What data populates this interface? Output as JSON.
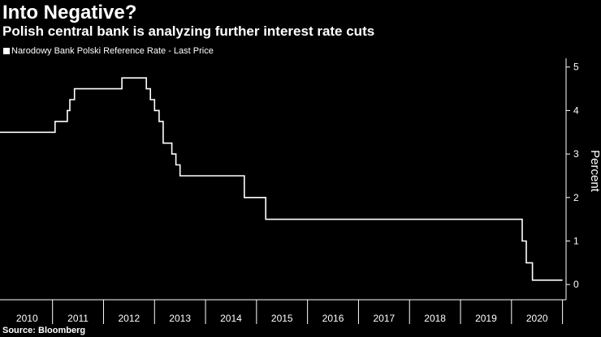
{
  "header": {
    "title": "Into Negative?",
    "subtitle": "Polish central bank is analyzing further interest rate cuts"
  },
  "legend": {
    "label": "Narodowy Bank Polski Reference Rate - Last Price",
    "color": "#ffffff"
  },
  "footer": {
    "source": "Source: Bloomberg"
  },
  "chart_data": {
    "type": "line",
    "title": "Into Negative?",
    "subtitle": "Polish central bank is analyzing further interest rate cuts",
    "ylabel": "Percent",
    "xlabel": "",
    "xlim": [
      2009.97,
      2021.07
    ],
    "ylim": [
      -0.35,
      5.2
    ],
    "yticks": [
      0,
      1,
      2,
      3,
      4,
      5
    ],
    "xticks": [
      "2010",
      "2011",
      "2012",
      "2013",
      "2014",
      "2015",
      "2016",
      "2017",
      "2018",
      "2019",
      "2020"
    ],
    "grid": false,
    "legend_position": "top-left",
    "background": "#000000",
    "line_color": "#ffffff",
    "series": [
      {
        "name": "Narodowy Bank Polski Reference Rate - Last Price",
        "step": true,
        "points": [
          [
            2009.97,
            3.5
          ],
          [
            2011.05,
            3.75
          ],
          [
            2011.29,
            4.0
          ],
          [
            2011.34,
            4.25
          ],
          [
            2011.43,
            4.5
          ],
          [
            2012.36,
            4.75
          ],
          [
            2012.84,
            4.5
          ],
          [
            2012.92,
            4.25
          ],
          [
            2013.0,
            4.0
          ],
          [
            2013.09,
            3.75
          ],
          [
            2013.17,
            3.25
          ],
          [
            2013.34,
            3.0
          ],
          [
            2013.42,
            2.75
          ],
          [
            2013.5,
            2.5
          ],
          [
            2014.76,
            2.0
          ],
          [
            2015.18,
            1.5
          ],
          [
            2020.21,
            1.0
          ],
          [
            2020.29,
            0.5
          ],
          [
            2020.41,
            0.1
          ],
          [
            2021.0,
            0.1
          ]
        ]
      }
    ]
  }
}
